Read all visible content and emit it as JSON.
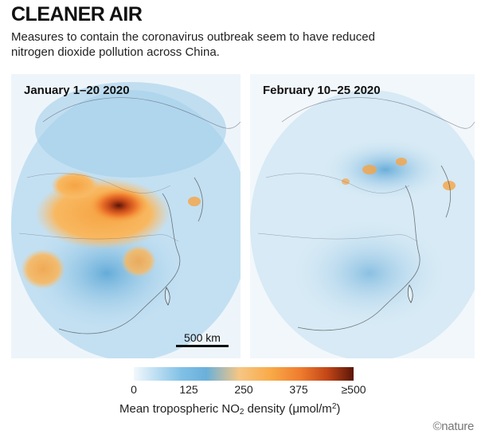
{
  "header": {
    "title": "CLEANER AIR",
    "subtitle": "Measures to contain the coronavirus outbreak seem to have reduced nitrogen dioxide pollution across China."
  },
  "maps": [
    {
      "label": "January 1–20 2020",
      "pollution_level": "high"
    },
    {
      "label": "February 10–25 2020",
      "pollution_level": "low"
    }
  ],
  "scalebar": {
    "label": "500 km"
  },
  "legend": {
    "ticks": [
      "0",
      "125",
      "250",
      "375",
      "≥500"
    ],
    "range": [
      0,
      500
    ],
    "title_pre": "Mean tropospheric NO",
    "title_sub": "2",
    "title_mid": " density (μmol/m",
    "title_sup": "2",
    "title_post": ")",
    "colors": [
      "#f2f8fc",
      "#7fc0e6",
      "#f6c684",
      "#ef7b2e",
      "#5a1608"
    ]
  },
  "credit": "©nature"
}
